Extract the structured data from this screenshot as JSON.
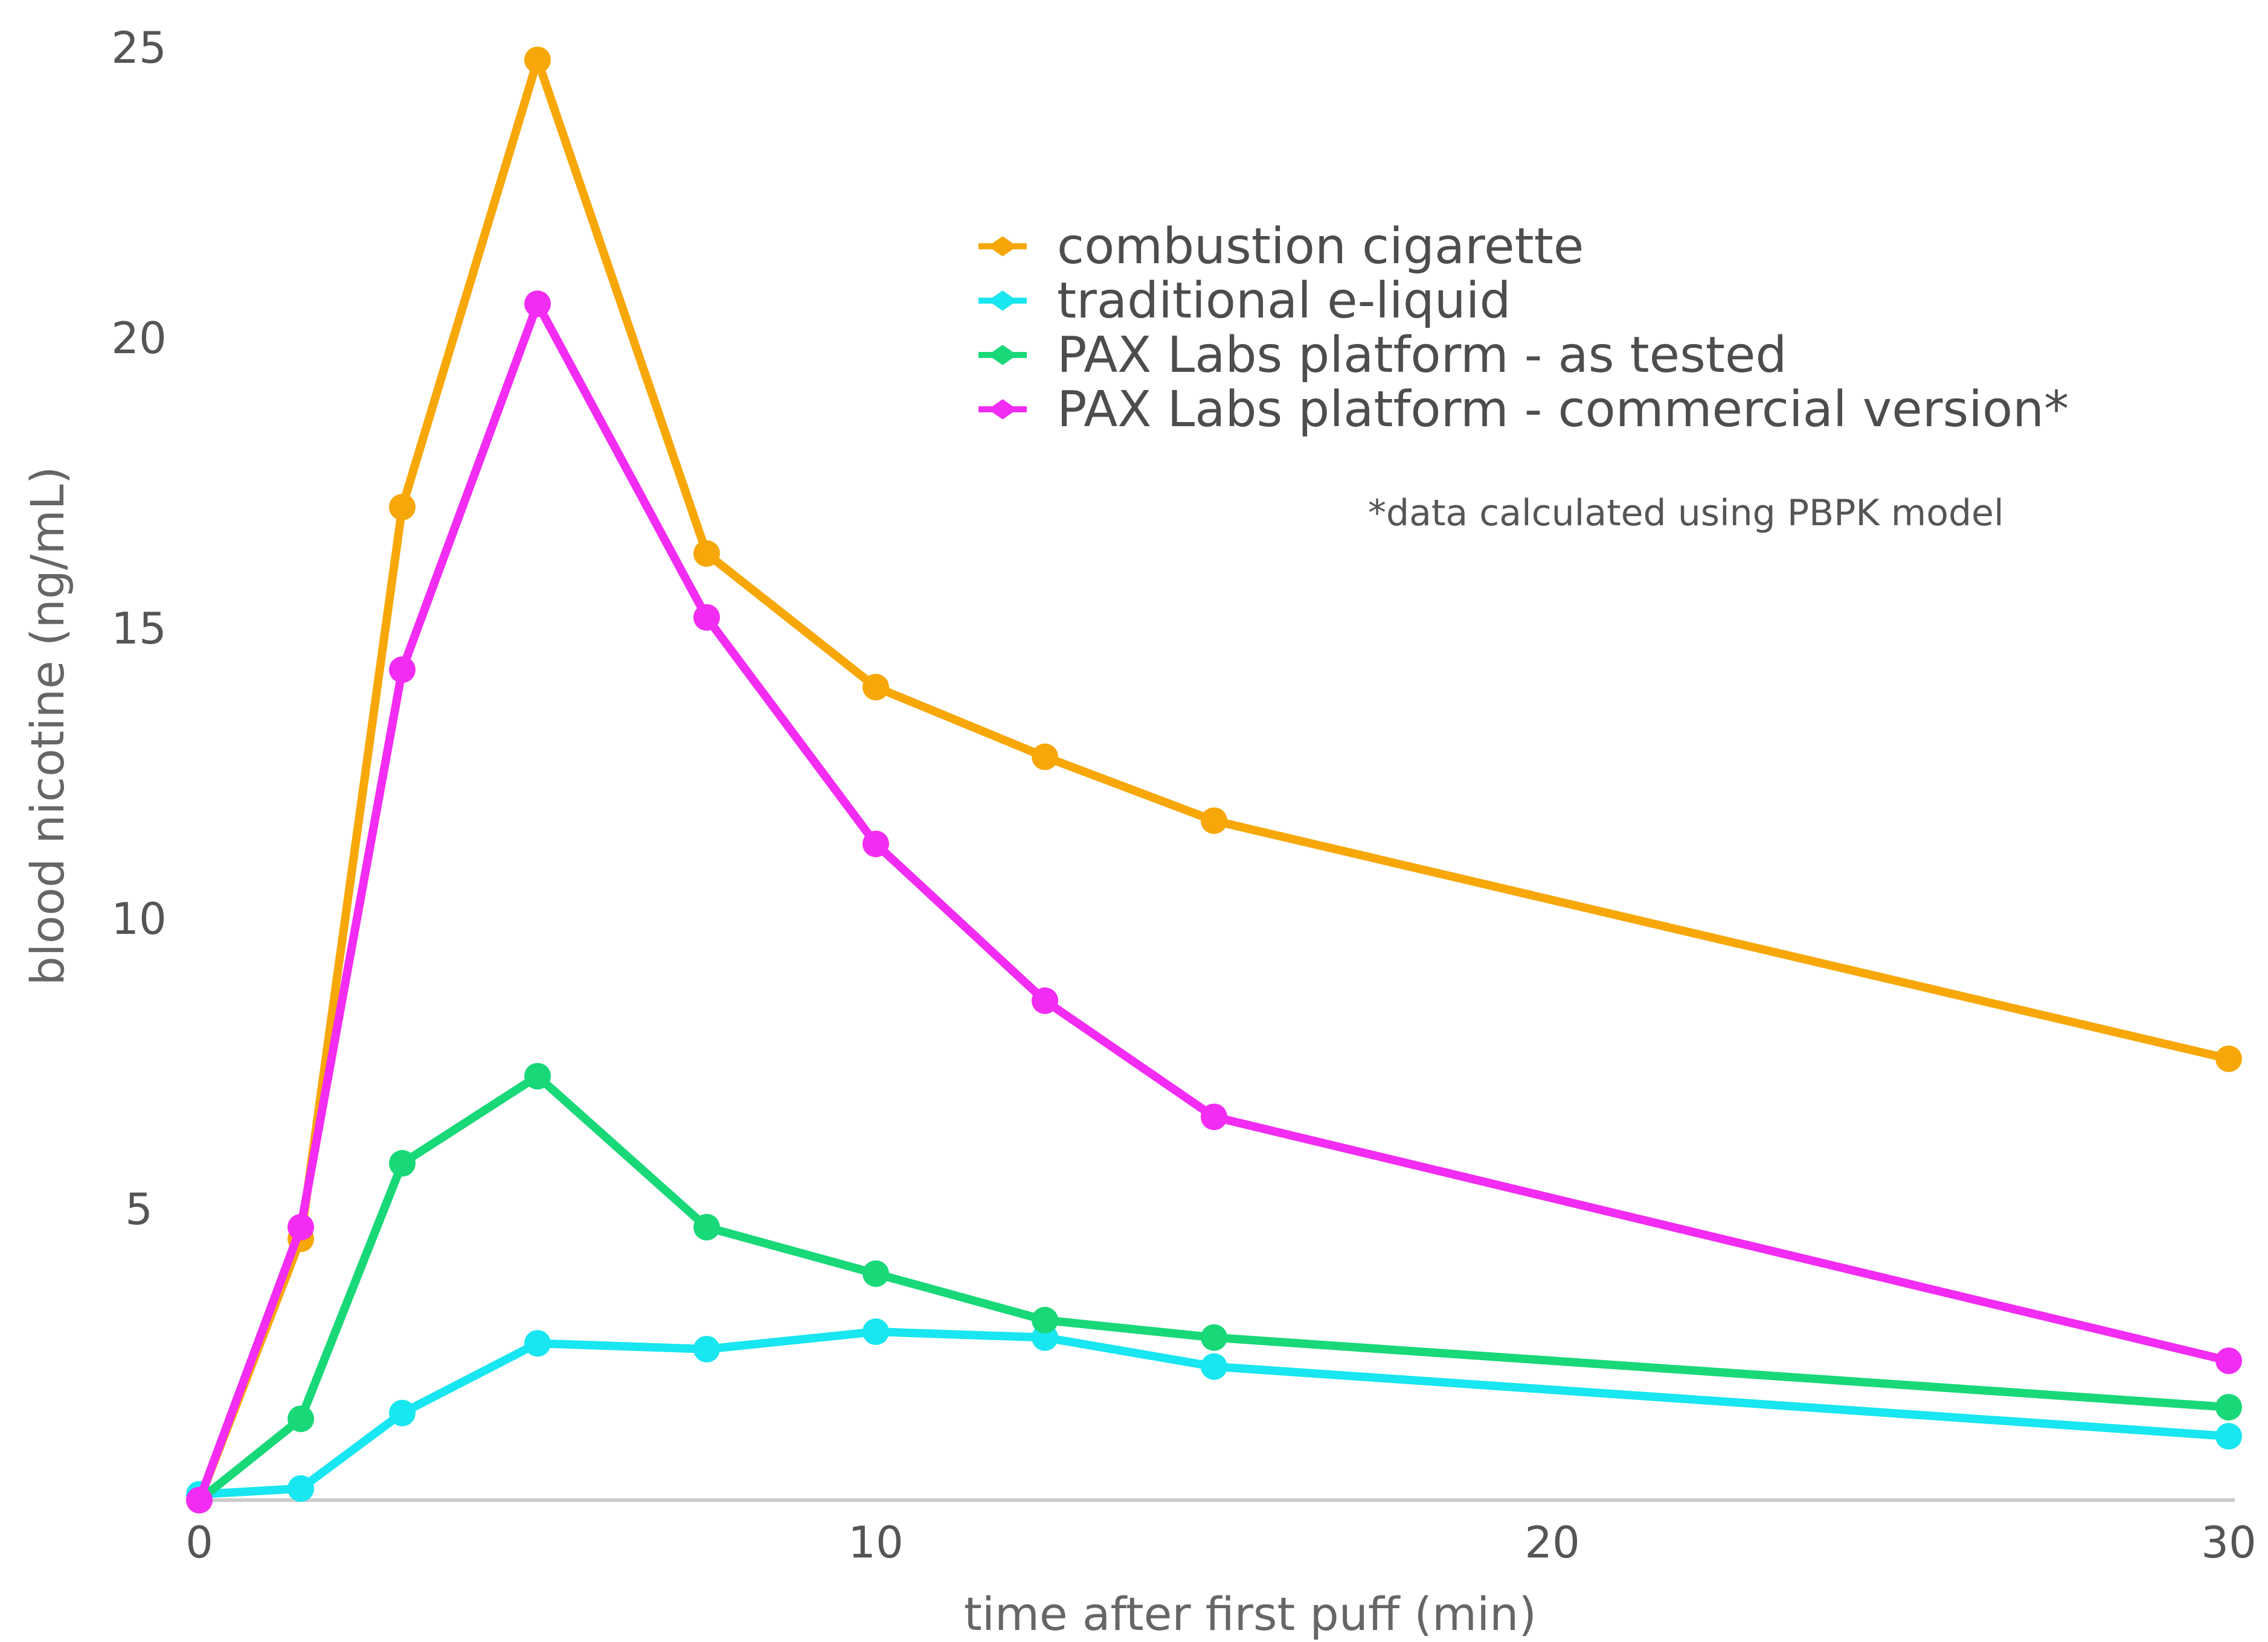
{
  "chart_data": {
    "type": "line",
    "xlabel": "time after first puff (min)",
    "ylabel": "blood nicotine (ng/mL)",
    "x_ticks": [
      "0",
      "10",
      "20",
      "30"
    ],
    "y_ticks": [
      "5",
      "10",
      "15",
      "20",
      "25"
    ],
    "xlim": [
      0,
      30
    ],
    "ylim": [
      0,
      25
    ],
    "grid": false,
    "legend_position": "top-right",
    "note": "*data calculated using PBPK model",
    "x": [
      0,
      1.5,
      3,
      5,
      7.5,
      10,
      12.5,
      15,
      30
    ],
    "series": [
      {
        "name": "combustion cigarette",
        "color": "#f7a707",
        "values": [
          0,
          4.5,
          17.1,
          24.8,
          16.3,
          14.0,
          12.8,
          11.7,
          7.6
        ]
      },
      {
        "name": "traditional e-liquid",
        "color": "#18e6f0",
        "values": [
          0.1,
          0.2,
          1.5,
          2.7,
          2.6,
          2.9,
          2.8,
          2.3,
          1.1
        ]
      },
      {
        "name": "PAX Labs platform - as tested",
        "color": "#18d878",
        "values": [
          0,
          1.4,
          5.8,
          7.3,
          4.7,
          3.9,
          3.1,
          2.8,
          1.6
        ]
      },
      {
        "name": "PAX Labs platform - commercial version*",
        "color": "#f22cf2",
        "values": [
          0,
          4.7,
          14.3,
          20.6,
          15.2,
          11.3,
          8.6,
          6.6,
          2.4
        ]
      }
    ]
  }
}
